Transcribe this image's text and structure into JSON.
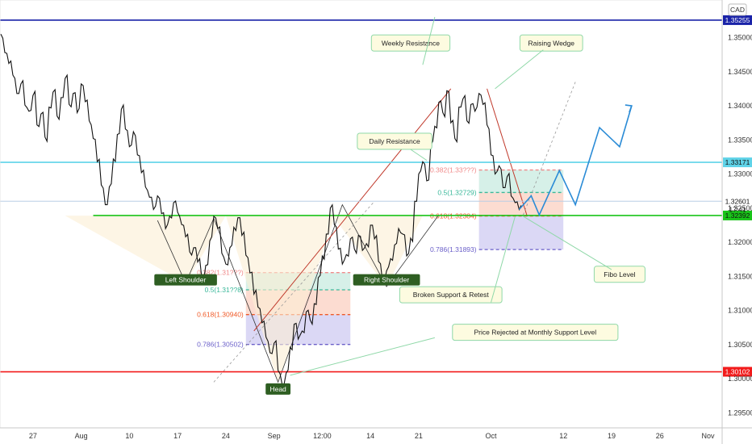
{
  "chart_data": {
    "type": "line",
    "currency": "CAD",
    "instrument_note": "",
    "y_ticks": [
      1.295,
      1.3,
      1.305,
      1.31,
      1.315,
      1.32,
      1.325,
      1.33,
      1.335,
      1.34,
      1.345,
      1.35
    ],
    "y_tick_labels": [
      "1.29500",
      "1.30000",
      "1.30500",
      "1.31000",
      "1.31500",
      "1.32000",
      "1.32500",
      "1.33000",
      "1.33500",
      "1.34000",
      "1.34500",
      "1.35000"
    ],
    "ylim": [
      1.2928,
      1.3555
    ],
    "x_ticks": [
      {
        "label": "27",
        "idx": 8
      },
      {
        "label": "Aug",
        "idx": 20
      },
      {
        "label": "10",
        "idx": 32
      },
      {
        "label": "17",
        "idx": 44
      },
      {
        "label": "24",
        "idx": 56
      },
      {
        "label": "Sep",
        "idx": 68
      },
      {
        "label": "12:00",
        "idx": 80
      },
      {
        "label": "14",
        "idx": 92
      },
      {
        "label": "21",
        "idx": 104
      },
      {
        "label": "Oct",
        "idx": 122
      },
      {
        "label": "12",
        "idx": 140
      },
      {
        "label": "19",
        "idx": 152
      },
      {
        "label": "26",
        "idx": 164
      },
      {
        "label": "Nov",
        "idx": 176
      }
    ],
    "price_series": [
      1.3505,
      1.3478,
      1.3462,
      1.3445,
      1.3418,
      1.3432,
      1.3401,
      1.3392,
      1.3415,
      1.3372,
      1.3388,
      1.3354,
      1.3398,
      1.342,
      1.3385,
      1.3412,
      1.344,
      1.3402,
      1.3418,
      1.339,
      1.3432,
      1.3406,
      1.3378,
      1.3352,
      1.3318,
      1.3284,
      1.3255,
      1.3281,
      1.3322,
      1.3358,
      1.3395,
      1.3366,
      1.334,
      1.3362,
      1.3328,
      1.3302,
      1.3281,
      1.3266,
      1.3248,
      1.3268,
      1.3242,
      1.322,
      1.3238,
      1.3258,
      1.3244,
      1.3226,
      1.3208,
      1.3186,
      1.3192,
      1.3171,
      1.3148,
      1.3166,
      1.3202,
      1.3238,
      1.322,
      1.3184,
      1.3168,
      1.3192,
      1.3222,
      1.3236,
      1.321,
      1.3181,
      1.3155,
      1.3124,
      1.3105,
      1.3082,
      1.3061,
      1.3038,
      1.3052,
      1.3012,
      1.2992,
      1.3008,
      1.3046,
      1.308,
      1.3058,
      1.307,
      1.3098,
      1.3086,
      1.311,
      1.3148,
      1.318,
      1.3212,
      1.325,
      1.3226,
      1.319,
      1.3168,
      1.3182,
      1.3205,
      1.319,
      1.321,
      1.3188,
      1.3198,
      1.3225,
      1.3205,
      1.3172,
      1.3142,
      1.3158,
      1.3176,
      1.3196,
      1.322,
      1.3212,
      1.318,
      1.3206,
      1.326,
      1.33,
      1.3318,
      1.329,
      1.3342,
      1.337,
      1.3405,
      1.339,
      1.3422,
      1.3375,
      1.3352,
      1.3398,
      1.341,
      1.3378,
      1.3402,
      1.3392,
      1.3418,
      1.3402,
      1.3372,
      1.3328,
      1.33,
      1.3312,
      1.328,
      1.3296,
      1.3268,
      1.3258,
      1.3248
    ],
    "price_lines": [
      {
        "value": 1.35255,
        "label": "1.35255",
        "color": "#1a23a8"
      },
      {
        "value": 1.33171,
        "label": "1.33171",
        "color": "#5fd3e8"
      },
      {
        "value": 1.32601,
        "label": "1.32601",
        "color": "#b9cde6"
      },
      {
        "value": 1.32392,
        "label": "1.32392",
        "color": "#19c419"
      },
      {
        "value": 1.30102,
        "label": "1.30102",
        "color": "#f21b1b"
      }
    ],
    "current_price": {
      "value": "1.32601",
      "countdown": "17:41"
    },
    "fib_sets": [
      {
        "name": "",
        "x_start": 61,
        "x_end": 87,
        "levels": [
          {
            "ratio": "0.382",
            "label": "0.382(1.31???)",
            "value": 1.31555,
            "color": "#f08a8a"
          },
          {
            "ratio": "0.5",
            "label": "0.5(1.31??8)",
            "value": 1.31303,
            "color": "#3ab89a"
          },
          {
            "ratio": "0.618",
            "label": "0.618(1.30940)",
            "value": 1.3094,
            "color": "#f05a28"
          },
          {
            "ratio": "0.786",
            "label": "0.786(1.30502)",
            "value": 1.30502,
            "color": "#6a5fc9"
          }
        ]
      },
      {
        "name": "",
        "x_start": 119,
        "x_end": 140,
        "levels": [
          {
            "ratio": "0.382",
            "label": "0.382(1.33???)",
            "value": 1.33059,
            "color": "#f08a8a"
          },
          {
            "ratio": "0.5",
            "label": "0.5(1.32729)",
            "value": 1.32729,
            "color": "#3ab89a"
          },
          {
            "ratio": "0.618",
            "label": "0.618(1.32384)",
            "value": 1.32384,
            "color": "#f05a28"
          },
          {
            "ratio": "0.786",
            "label": "0.786(1.31893)",
            "value": 1.31893,
            "color": "#6a5fc9"
          }
        ]
      }
    ],
    "head_shoulders_neckline": {
      "from": {
        "idx": 23,
        "value": 1.3239
      },
      "to": {
        "idx": 105,
        "value": 1.3239
      }
    },
    "pattern_labels": [
      {
        "text": "Left Shoulder",
        "idx": 46,
        "value": 1.3145
      },
      {
        "text": "Head",
        "idx": 69,
        "value": 1.2985
      },
      {
        "text": "Right Shoulder",
        "idx": 96,
        "value": 1.3145
      }
    ],
    "callouts": [
      {
        "text": "Weekly Resistance",
        "idx": 102,
        "value": 1.3492
      },
      {
        "text": "Raising Wedge",
        "idx": 137,
        "value": 1.3492
      },
      {
        "text": "Daily Resistance",
        "idx": 98,
        "value": 1.3348
      },
      {
        "text": "Broken Support & Retest",
        "idx": 112,
        "value": 1.3123
      },
      {
        "text": "Fibo Level",
        "idx": 154,
        "value": 1.3153
      },
      {
        "text": "Price Rejected at Monthly Support Level",
        "idx": 133,
        "value": 1.3068
      }
    ],
    "projection": [
      {
        "idx": 129,
        "value": 1.3248
      },
      {
        "idx": 132,
        "value": 1.3268
      },
      {
        "idx": 134,
        "value": 1.324
      },
      {
        "idx": 139,
        "value": 1.3305
      },
      {
        "idx": 143,
        "value": 1.3255
      },
      {
        "idx": 149,
        "value": 1.3368
      },
      {
        "idx": 154,
        "value": 1.334
      },
      {
        "idx": 157,
        "value": 1.34
      }
    ]
  }
}
